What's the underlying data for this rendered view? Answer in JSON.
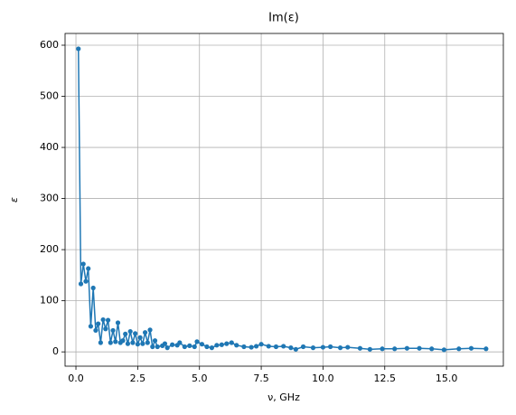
{
  "chart_data": {
    "type": "line",
    "title": "Im(ε)",
    "x_label": "ν, GHz",
    "y_label": "ε",
    "color": "#1f77b4",
    "grid": true,
    "x": [
      0.1,
      0.2,
      0.3,
      0.4,
      0.5,
      0.6,
      0.7,
      0.8,
      0.9,
      1.0,
      1.1,
      1.2,
      1.3,
      1.4,
      1.5,
      1.6,
      1.7,
      1.8,
      1.9,
      2.0,
      2.1,
      2.2,
      2.3,
      2.4,
      2.5,
      2.6,
      2.7,
      2.8,
      2.9,
      3.0,
      3.1,
      3.2,
      3.3,
      3.5,
      3.6,
      3.7,
      3.9,
      4.1,
      4.2,
      4.4,
      4.6,
      4.8,
      4.9,
      5.1,
      5.3,
      5.5,
      5.7,
      5.9,
      6.1,
      6.3,
      6.5,
      6.8,
      7.1,
      7.3,
      7.5,
      7.8,
      8.1,
      8.4,
      8.7,
      8.9,
      9.2,
      9.6,
      10.0,
      10.3,
      10.7,
      11.0,
      11.5,
      11.9,
      12.4,
      12.9,
      13.4,
      13.9,
      14.4,
      14.9,
      15.5,
      16.0,
      16.6
    ],
    "values": [
      593,
      133,
      172,
      138,
      163,
      50,
      125,
      42,
      55,
      18,
      63,
      45,
      62,
      18,
      42,
      20,
      57,
      18,
      22,
      35,
      16,
      40,
      18,
      36,
      15,
      28,
      16,
      38,
      18,
      43,
      10,
      22,
      10,
      12,
      16,
      8,
      14,
      13,
      18,
      10,
      12,
      10,
      20,
      15,
      10,
      8,
      13,
      14,
      16,
      18,
      13,
      10,
      9,
      11,
      15,
      11,
      10,
      11,
      8,
      5,
      10,
      8,
      9,
      10,
      8,
      9,
      7,
      5,
      6,
      6,
      7,
      7,
      6,
      4,
      6,
      7,
      6
    ],
    "xlim": [
      -0.44,
      17.3
    ],
    "ylim": [
      -28,
      623
    ],
    "xticks": [
      {
        "value": 0,
        "label": "0.0"
      },
      2.5,
      {
        "value": 5,
        "label": "5.0"
      },
      7.5,
      {
        "value": 10,
        "label": "10.0"
      },
      12.5,
      {
        "value": 15,
        "label": "15.0"
      }
    ],
    "yticks": [
      0,
      100,
      200,
      300,
      400,
      500,
      600
    ]
  }
}
